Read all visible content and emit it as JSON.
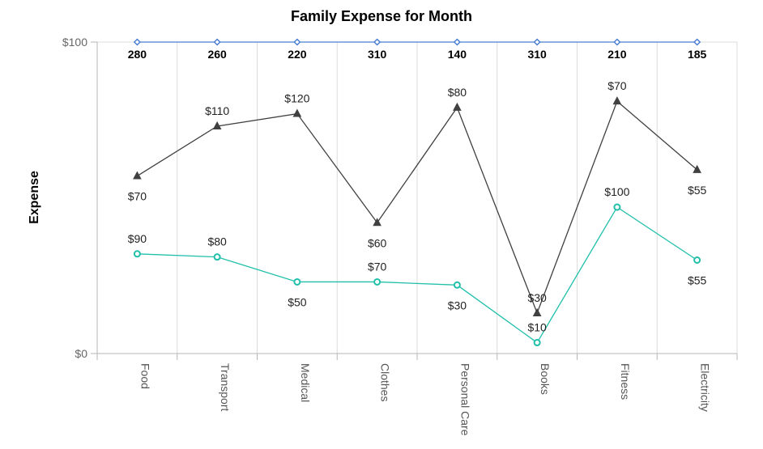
{
  "chart_data": {
    "type": "line",
    "title": "Family Expense for Month",
    "xlabel": "",
    "ylabel": "Expense",
    "ylim": [
      0,
      100
    ],
    "y_tick_labels": [
      "$0",
      "$100"
    ],
    "categories": [
      "Food",
      "Transport",
      "Medical",
      "Clothes",
      "Personal Care",
      "Books",
      "Fitness",
      "Electricity"
    ],
    "grid": true,
    "legend": "none",
    "series": [
      {
        "color": "#4a7fd1",
        "marker": "diamond",
        "values": [
          100,
          100,
          100,
          100,
          100,
          100,
          100,
          100
        ],
        "labels": [
          "280",
          "260",
          "220",
          "310",
          "140",
          "310",
          "210",
          "185"
        ],
        "label_position": "below",
        "label_bold": true
      },
      {
        "color": "#404040",
        "marker": "triangle",
        "values": [
          57,
          73,
          77,
          42,
          79,
          13,
          81,
          59
        ],
        "labels": [
          "$70",
          "$110",
          "$120",
          "$60",
          "$80",
          "$30",
          "$70",
          "$55"
        ],
        "label_position": [
          "below",
          "above",
          "above",
          "below",
          "above",
          "above",
          "above",
          "below"
        ]
      },
      {
        "color": "#1fbfaa",
        "marker": "circle",
        "values": [
          32,
          31,
          23,
          23,
          22,
          3.5,
          47,
          30
        ],
        "labels": [
          "$90",
          "$80",
          "$50",
          "$70",
          "$30",
          "$10",
          "$100",
          "$55"
        ],
        "label_position": [
          "above",
          "above",
          "below",
          "above",
          "below",
          "above",
          "above",
          "below"
        ]
      }
    ]
  }
}
